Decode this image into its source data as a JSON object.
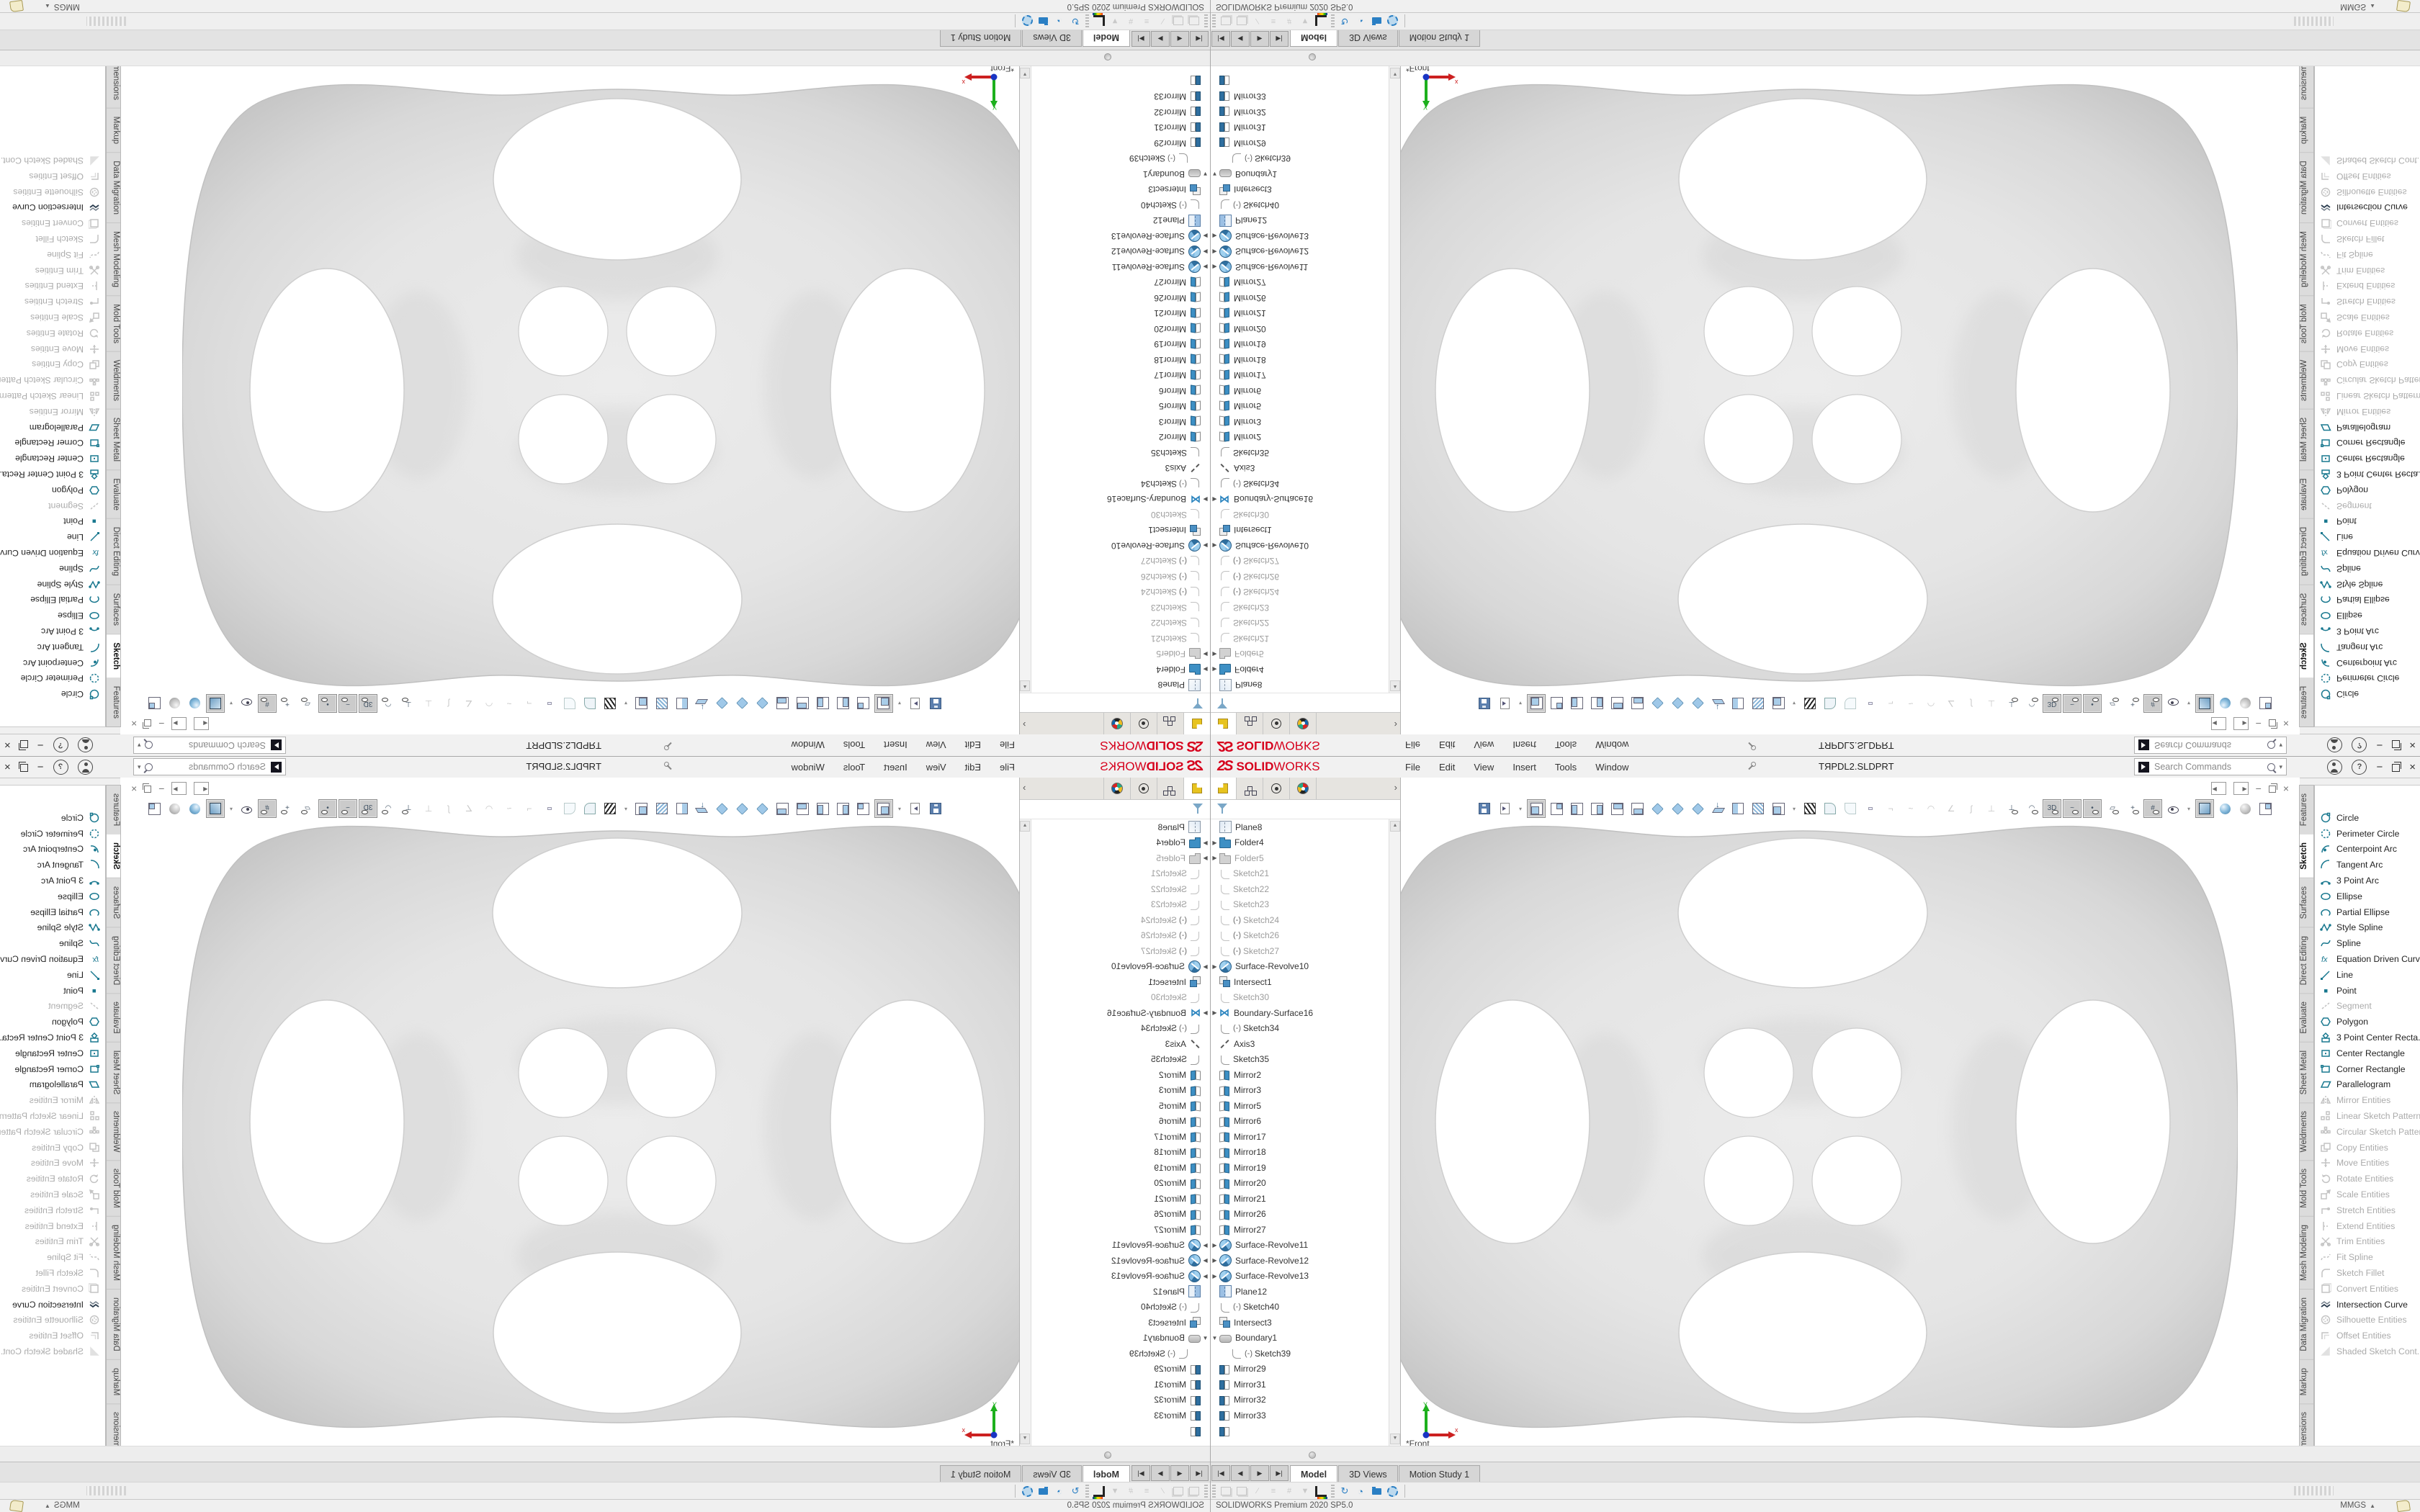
{
  "window": {
    "logo_mark": "2S",
    "logo_solid": "SOLID",
    "logo_works": "WORKS",
    "menus": [
      "File",
      "Edit",
      "View",
      "Insert",
      "Tools",
      "Window"
    ],
    "title": "TЯPDL2.SLDPRT",
    "search_placeholder": "Search Commands"
  },
  "feature_manager": {
    "tabs": [
      {
        "name": "featuremanager-design-tree",
        "icon": "part",
        "active": true
      },
      {
        "name": "propertymanager",
        "icon": "hierarchy",
        "active": false
      },
      {
        "name": "configurationmanager",
        "icon": "target",
        "active": false
      },
      {
        "name": "displaymanager",
        "icon": "colorwheel",
        "active": false
      }
    ],
    "scroll_more": "›",
    "tree_items": [
      {
        "label": "Plane8",
        "icon": "plane"
      },
      {
        "label": "Folder4",
        "icon": "folder",
        "arrow": "r"
      },
      {
        "label": "Folder5",
        "icon": "folder-gray",
        "arrow": "r",
        "gray": true
      },
      {
        "label": "Sketch21",
        "icon": "sketch",
        "gray": true
      },
      {
        "label": "Sketch22",
        "icon": "sketch",
        "gray": true
      },
      {
        "label": "Sketch23",
        "icon": "sketch",
        "gray": true
      },
      {
        "label": "Sketch24",
        "icon": "sketch",
        "gray": true,
        "prefix": "(-)"
      },
      {
        "label": "Sketch26",
        "icon": "sketch",
        "gray": true,
        "prefix": "(-)"
      },
      {
        "label": "Sketch27",
        "icon": "sketch",
        "gray": true,
        "prefix": "(-)"
      },
      {
        "label": "Surface-Revolve10",
        "icon": "revolve",
        "arrow": "r"
      },
      {
        "label": "Intersect1",
        "icon": "intersect"
      },
      {
        "label": "Sketch30",
        "icon": "sketch",
        "gray": true
      },
      {
        "label": "Boundary-Surface16",
        "icon": "bsurf",
        "arrow": "r"
      },
      {
        "label": "Sketch34",
        "icon": "sketch",
        "prefix": "(-)"
      },
      {
        "label": "Axis3",
        "icon": "axis"
      },
      {
        "label": "Sketch35",
        "icon": "sketch"
      },
      {
        "label": "Mirror2",
        "icon": "mirror-a"
      },
      {
        "label": "Mirror3",
        "icon": "mirror-a"
      },
      {
        "label": "Mirror5",
        "icon": "mirror-a"
      },
      {
        "label": "Mirror6",
        "icon": "mirror-a"
      },
      {
        "label": "Mirror17",
        "icon": "mirror-a"
      },
      {
        "label": "Mirror18",
        "icon": "mirror-a"
      },
      {
        "label": "Mirror19",
        "icon": "mirror-a"
      },
      {
        "label": "Mirror20",
        "icon": "mirror-a"
      },
      {
        "label": "Mirror21",
        "icon": "mirror-a"
      },
      {
        "label": "Mirror26",
        "icon": "mirror-a"
      },
      {
        "label": "Mirror27",
        "icon": "mirror-a"
      },
      {
        "label": "Surface-Revolve11",
        "icon": "revolve",
        "arrow": "r"
      },
      {
        "label": "Surface-Revolve12",
        "icon": "revolve",
        "arrow": "r"
      },
      {
        "label": "Surface-Revolve13",
        "icon": "revolve",
        "arrow": "r"
      },
      {
        "label": "Plane12",
        "icon": "plane-blue"
      },
      {
        "label": "Sketch40",
        "icon": "sketch",
        "prefix": "(-)"
      },
      {
        "label": "Intersect3",
        "icon": "intersect"
      },
      {
        "label": "Boundary1",
        "icon": "boundary",
        "arrow": "d"
      },
      {
        "label": "Sketch39",
        "icon": "sketch",
        "prefix": "(-)",
        "child": true
      },
      {
        "label": "Mirror29",
        "icon": "mirror-b"
      },
      {
        "label": "Mirror31",
        "icon": "mirror-b"
      },
      {
        "label": "Mirror32",
        "icon": "mirror-b"
      },
      {
        "label": "Mirror33",
        "icon": "mirror-b"
      },
      {
        "label": "",
        "icon": "mirror-b",
        "partial": true
      }
    ]
  },
  "command_manager": {
    "tabs": [
      {
        "label": "Features",
        "selected": false
      },
      {
        "label": "Sketch",
        "selected": true
      },
      {
        "label": "Surfaces",
        "selected": false
      },
      {
        "label": "Direct Editing",
        "selected": false
      },
      {
        "label": "Evaluate",
        "selected": false
      },
      {
        "label": "Sheet Metal",
        "selected": false
      },
      {
        "label": "Weldments",
        "selected": false
      },
      {
        "label": "Mold Tools",
        "selected": false
      },
      {
        "label": "Mesh Modeling",
        "selected": false
      },
      {
        "label": "Data Migration",
        "selected": false
      },
      {
        "label": "Markup",
        "selected": false
      },
      {
        "label": "MBD Dimensions",
        "selected": false
      }
    ],
    "flyout": [
      {
        "label": "Circle",
        "icon": "circle",
        "enabled": true
      },
      {
        "label": "Perimeter Circle",
        "icon": "pcircle",
        "enabled": true
      },
      {
        "label": "Centerpoint Arc",
        "icon": "cparc",
        "enabled": true
      },
      {
        "label": "Tangent Arc",
        "icon": "tarc",
        "enabled": true
      },
      {
        "label": "3 Point Arc",
        "icon": "arc3",
        "enabled": true
      },
      {
        "label": "Ellipse",
        "icon": "ellipse",
        "enabled": true
      },
      {
        "label": "Partial Ellipse",
        "icon": "pellipse",
        "enabled": true
      },
      {
        "label": "Style Spline",
        "icon": "sspline",
        "enabled": true
      },
      {
        "label": "Spline",
        "icon": "spline",
        "enabled": true
      },
      {
        "label": "Equation Driven Curve",
        "icon": "fx",
        "enabled": true
      },
      {
        "label": "Line",
        "icon": "line",
        "enabled": true
      },
      {
        "label": "Point",
        "icon": "point",
        "enabled": true
      },
      {
        "label": "Segment",
        "icon": "segment",
        "enabled": false
      },
      {
        "label": "Polygon",
        "icon": "polygon",
        "enabled": true
      },
      {
        "label": "3 Point Center Recta...",
        "icon": "crect3",
        "enabled": true
      },
      {
        "label": "Center Rectangle",
        "icon": "crect",
        "enabled": true
      },
      {
        "label": "Corner Rectangle",
        "icon": "corner",
        "enabled": true
      },
      {
        "label": "Parallelogram",
        "icon": "para",
        "enabled": true
      },
      {
        "label": "Mirror Entities",
        "icon": "mirror",
        "enabled": false
      },
      {
        "label": "Linear Sketch Pattern",
        "icon": "linpat",
        "enabled": false
      },
      {
        "label": "Circular Sketch Pattern",
        "icon": "cirpat",
        "enabled": false
      },
      {
        "label": "Copy Entities",
        "icon": "copy",
        "enabled": false
      },
      {
        "label": "Move Entities",
        "icon": "move",
        "enabled": false
      },
      {
        "label": "Rotate Entities",
        "icon": "rotate",
        "enabled": false
      },
      {
        "label": "Scale Entities",
        "icon": "scale",
        "enabled": false
      },
      {
        "label": "Stretch Entities",
        "icon": "stretch",
        "enabled": false
      },
      {
        "label": "Extend Entities",
        "icon": "extend",
        "enabled": false
      },
      {
        "label": "Trim Entities",
        "icon": "trim",
        "enabled": false
      },
      {
        "label": "Fit Spline",
        "icon": "fitspline",
        "enabled": false
      },
      {
        "label": "Sketch Fillet",
        "icon": "fillet",
        "enabled": false
      },
      {
        "label": "Convert Entities",
        "icon": "convert",
        "enabled": false
      },
      {
        "label": "Intersection Curve",
        "icon": "intcurve",
        "enabled": true,
        "dark": true
      },
      {
        "label": "Silhouette Entities",
        "icon": "silh",
        "enabled": false
      },
      {
        "label": "Offset Entities",
        "icon": "offset",
        "enabled": false
      },
      {
        "label": "Shaded Sketch Cont...",
        "icon": "shaded",
        "enabled": false
      }
    ]
  },
  "main_toolbar": [
    {
      "name": "save-icon",
      "t": "save"
    },
    {
      "name": "print-preview-icon",
      "t": "docp"
    },
    {
      "name": "dropdown-caret-icon",
      "t": "caret"
    },
    {
      "name": "view-front-icon",
      "t": "cub cbf",
      "pressed": true
    },
    {
      "name": "view-back-icon",
      "t": "cub cbb"
    },
    {
      "name": "view-left-icon",
      "t": "cub cbl"
    },
    {
      "name": "view-right-icon",
      "t": "cub cbr"
    },
    {
      "name": "view-top-icon",
      "t": "cub cbt"
    },
    {
      "name": "view-bottom-icon",
      "t": "cub cbbo"
    },
    {
      "name": "view-isometric-icon",
      "t": "cub cbiso"
    },
    {
      "name": "view-trimetric-icon",
      "t": "cub cbiso"
    },
    {
      "name": "view-dimetric-icon",
      "t": "cub cbiso"
    },
    {
      "name": "normal-to-icon",
      "t": "nto"
    },
    {
      "name": "section-view-icon",
      "t": "sec"
    },
    {
      "name": "section-half-icon",
      "t": "sec2"
    },
    {
      "name": "display-style-icon",
      "t": "cub cbf"
    },
    {
      "name": "dropdown-caret-icon",
      "t": "caret"
    },
    {
      "name": "zebra-stripes-icon",
      "t": "zebra"
    },
    {
      "name": "curvature-icon",
      "t": "cur"
    },
    {
      "name": "curvature-comb-icon",
      "t": "cur2"
    },
    {
      "name": "3d-drawing-view-icon",
      "t": "t3d"
    },
    {
      "name": "hidden-tool-icon",
      "t": "gph",
      "g": "¬"
    },
    {
      "name": "hidden-tool-icon",
      "t": "gph",
      "g": "~"
    },
    {
      "name": "hidden-tool-icon",
      "t": "gph",
      "g": "◠"
    },
    {
      "name": "hidden-tool-icon",
      "t": "gph",
      "g": "∠"
    },
    {
      "name": "hidden-tool-icon",
      "t": "gph",
      "g": "ʃ"
    },
    {
      "name": "hidden-tool-icon",
      "t": "gph",
      "g": "⊥"
    },
    {
      "name": "hide-show-perpendicular-icon",
      "t": "eye",
      "g": "⊥"
    },
    {
      "name": "hide-show-arcs-icon",
      "t": "eye",
      "g": "◠"
    },
    {
      "name": "show-3d-sketch-icon",
      "t": "eye",
      "g": "3D",
      "pressed": true
    },
    {
      "name": "show-curves-icon",
      "t": "eye",
      "g": "~",
      "pressed": true
    },
    {
      "name": "show-points-icon",
      "t": "eye",
      "g": "•",
      "pressed": true
    },
    {
      "name": "show-planes-icon",
      "t": "eye",
      "g": "▱"
    },
    {
      "name": "show-axes-icon",
      "t": "eye",
      "g": "+"
    },
    {
      "name": "show-grid-icon",
      "t": "eye",
      "g": "#",
      "pressed": true
    },
    {
      "name": "hide-all-types-eye-icon",
      "t": "eyebig"
    },
    {
      "name": "dropdown-caret-icon",
      "t": "caret"
    },
    {
      "name": "shaded-with-edges-icon",
      "t": "shaded",
      "pressed": true
    },
    {
      "name": "shaded-sphere-icon",
      "t": "sphb"
    },
    {
      "name": "gray-sphere-icon",
      "t": "sphg"
    },
    {
      "name": "wireframe-cube-icon",
      "t": "cub cbb"
    }
  ],
  "doc_window_buttons": [
    "pane-left",
    "pane-right",
    "minimize",
    "restore",
    "close"
  ],
  "doc_tabs": {
    "scroll_buttons": [
      "|◀",
      "◀",
      "▶",
      "▶|"
    ],
    "items": [
      {
        "label": "Model",
        "active": true
      },
      {
        "label": "3D Views",
        "active": false
      },
      {
        "label": "Motion Study 1",
        "active": false
      }
    ]
  },
  "motion_toolbar": [
    {
      "name": "grip",
      "t": "grip"
    },
    {
      "name": "animation-wizard-icon",
      "t": "page"
    },
    {
      "name": "pages-icon",
      "t": "page"
    },
    {
      "name": "pencil-icon",
      "t": "mgl",
      "g": "∕"
    },
    {
      "name": "lines-icon",
      "t": "mgl",
      "g": "≡"
    },
    {
      "name": "grid-icon",
      "t": "mgl",
      "g": "#"
    },
    {
      "name": "filter-icon",
      "t": "mgl",
      "g": "▼"
    },
    {
      "name": "measure-ruler-icon",
      "t": "ruler"
    },
    {
      "name": "grip",
      "t": "grip"
    },
    {
      "name": "reload-clock-icon",
      "t": "mblue",
      "g": "↻"
    },
    {
      "name": "clock-icon",
      "t": "mblue",
      "g": "◔"
    },
    {
      "name": "folder-check-icon",
      "t": "folder"
    },
    {
      "name": "gear-icon",
      "t": "gear"
    },
    {
      "name": "divider",
      "t": "div"
    }
  ],
  "viewport": {
    "orientation_label": "*Front",
    "triad_x_label": "x",
    "triad_y_label": "Y"
  },
  "status_bar": {
    "message": "SOLIDWORKS Premium 2020 SP5.0",
    "units": "MMGS",
    "units_caret": "▲"
  },
  "colors": {
    "logo_red": "#d6001c",
    "flyout_icon_teal": "#19788f",
    "tree_blue": "#3d8fc4",
    "pressed_gray": "#cbcbcb",
    "model_gray": "#dcdcdc"
  }
}
